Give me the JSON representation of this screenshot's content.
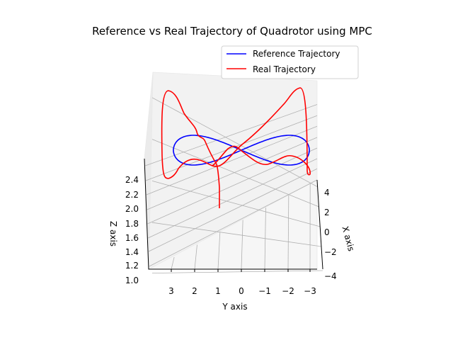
{
  "chart_data": {
    "type": "line",
    "projection": "3d",
    "title": "Reference vs Real Trajectory of Quadrotor using MPC",
    "xlabel": "X axis",
    "ylabel": "Y axis",
    "zlabel": "Z axis",
    "xlim": [
      -4,
      4
    ],
    "ylim": [
      -3.5,
      3.5
    ],
    "zlim": [
      1.0,
      2.5
    ],
    "x_ticks": [
      "4",
      "2",
      "0",
      "−2",
      "−4"
    ],
    "y_ticks": [
      "3",
      "2",
      "1",
      "0",
      "−1",
      "−2",
      "−3"
    ],
    "z_ticks": [
      "2.4",
      "2.2",
      "2.0",
      "1.8",
      "1.6",
      "1.4",
      "1.2",
      "1.0"
    ],
    "grid": true,
    "legend": {
      "placement": "top-right",
      "entries": [
        "Reference Trajectory",
        "Real Trajectory"
      ]
    },
    "series": [
      {
        "name": "Reference Trajectory",
        "color": "#0000ff",
        "shape": "figure-eight",
        "y_amplitude": 3,
        "z_center": 2.0,
        "z_amplitude": 0.5,
        "x": 0
      },
      {
        "name": "Real Trajectory",
        "color": "#ff0000",
        "shape": "tracking-response",
        "start": {
          "x": 0,
          "y": 1.0,
          "z": 1.6
        }
      }
    ]
  }
}
